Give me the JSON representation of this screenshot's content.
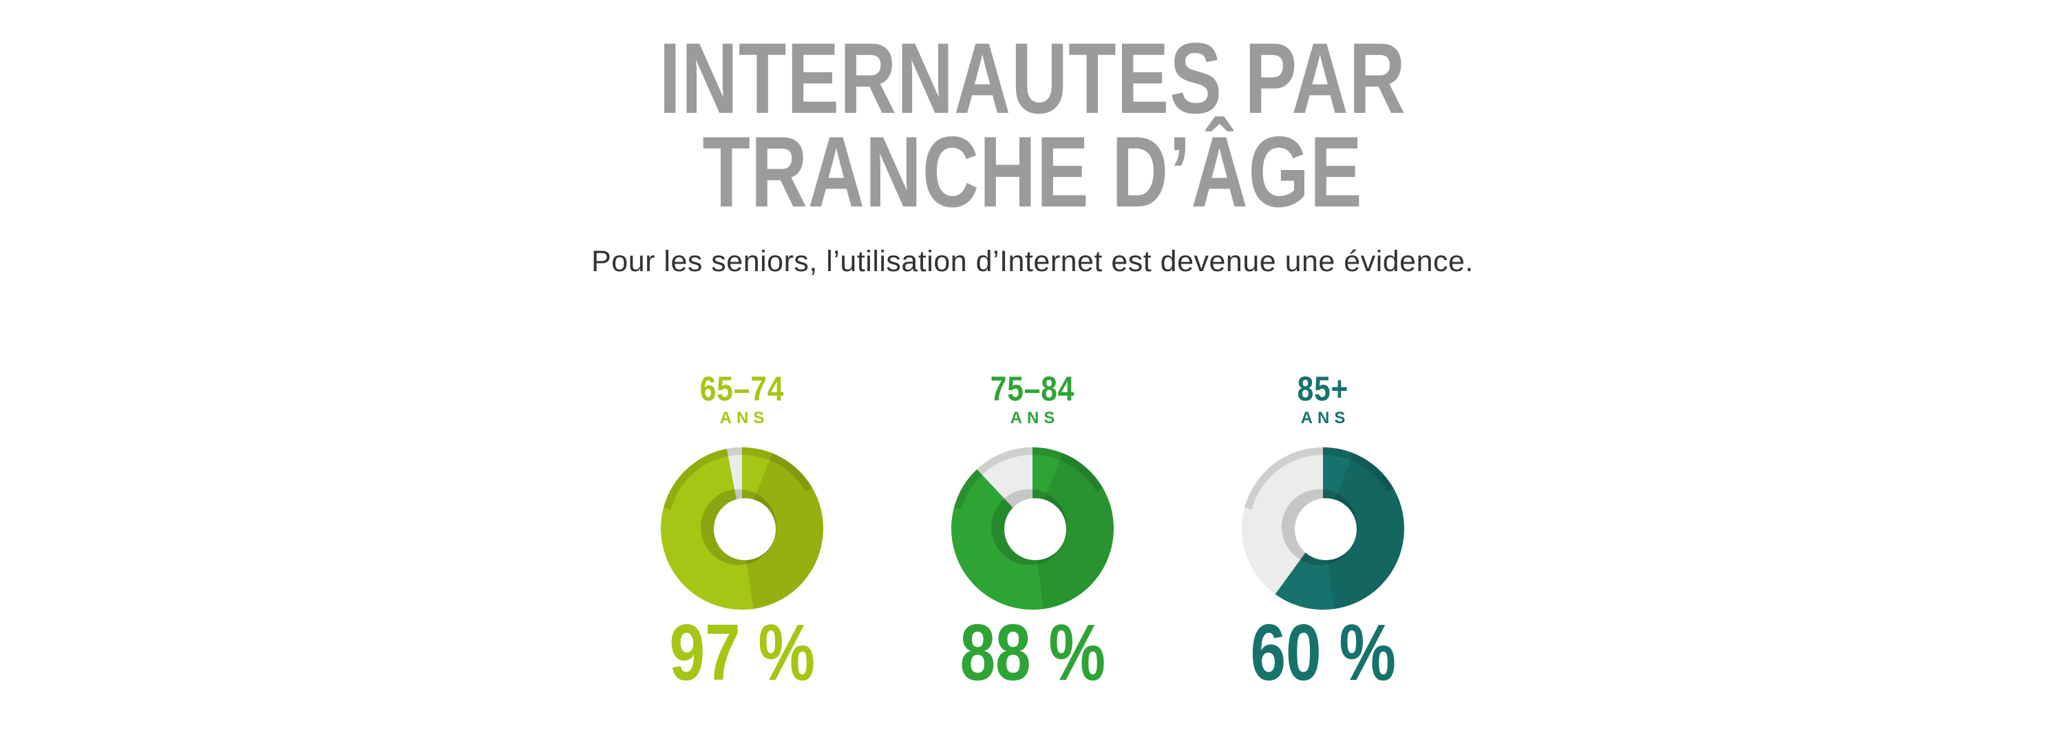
{
  "header": {
    "title_line1": "INTERNAUTES PAR",
    "title_line2": "TRANCHE D’ÂGE",
    "title_color": "#9b9b9b",
    "subtitle": "Pour les seniors, l’utilisation d’Internet est devenue une évidence.",
    "subtitle_color": "#333333"
  },
  "chart_data": {
    "type": "pie",
    "variant": "3d-donut",
    "title": "Internautes par tranche d'âge",
    "unit": "%",
    "legend_position": "none",
    "categories": [
      "65–74 ans",
      "75–84 ans",
      "85+ ans"
    ],
    "values": [
      97,
      88,
      60
    ],
    "rest_color": "#ececec",
    "series": [
      {
        "label": "65–74",
        "sublabel": "ANS",
        "value": 97,
        "value_label": "97 %",
        "color": "#a5c614",
        "rest_color": "#ececec"
      },
      {
        "label": "75–84",
        "sublabel": "ANS",
        "value": 88,
        "value_label": "88 %",
        "color": "#2ea435",
        "rest_color": "#ececec"
      },
      {
        "label": "85+",
        "sublabel": "ANS",
        "value": 60,
        "value_label": "60 %",
        "color": "#17726c",
        "rest_color": "#ececec"
      }
    ]
  }
}
